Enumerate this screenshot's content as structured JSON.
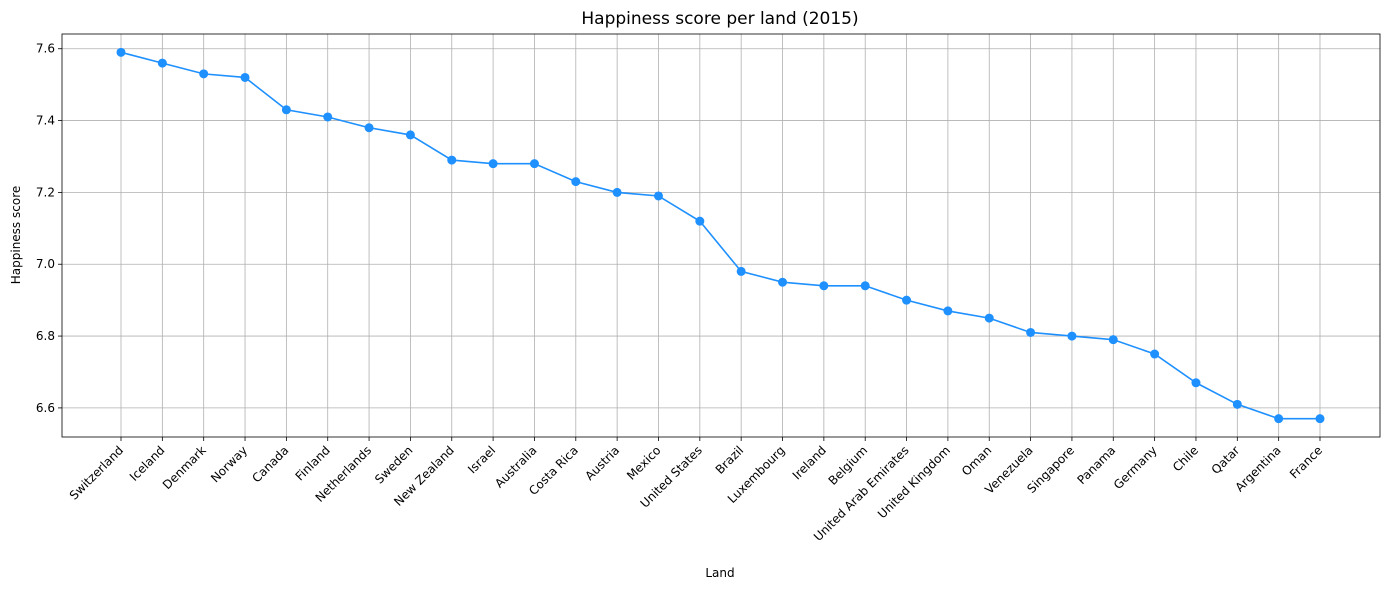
{
  "chart_data": {
    "type": "line",
    "title": "Happiness score per land (2015)",
    "xlabel": "Land",
    "ylabel": "Happiness score",
    "categories": [
      "Switzerland",
      "Iceland",
      "Denmark",
      "Norway",
      "Canada",
      "Finland",
      "Netherlands",
      "Sweden",
      "New Zealand",
      "Israel",
      "Australia",
      "Costa Rica",
      "Austria",
      "Mexico",
      "United States",
      "Brazil",
      "Luxembourg",
      "Ireland",
      "Belgium",
      "United Arab Emirates",
      "United Kingdom",
      "Oman",
      "Venezuela",
      "Singapore",
      "Panama",
      "Germany",
      "Chile",
      "Qatar",
      "Argentina",
      "France"
    ],
    "values": [
      7.59,
      7.56,
      7.53,
      7.52,
      7.43,
      7.41,
      7.38,
      7.36,
      7.29,
      7.28,
      7.28,
      7.23,
      7.2,
      7.19,
      7.12,
      6.98,
      6.95,
      6.94,
      6.94,
      6.9,
      6.87,
      6.85,
      6.81,
      6.8,
      6.79,
      6.75,
      6.67,
      6.61,
      6.57,
      6.57
    ],
    "yticks": [
      6.6,
      6.8,
      7.0,
      7.2,
      7.4,
      7.6
    ],
    "ylim": [
      6.519,
      7.641
    ],
    "grid": true,
    "line_color": "#1e90ff",
    "marker": "circle"
  }
}
